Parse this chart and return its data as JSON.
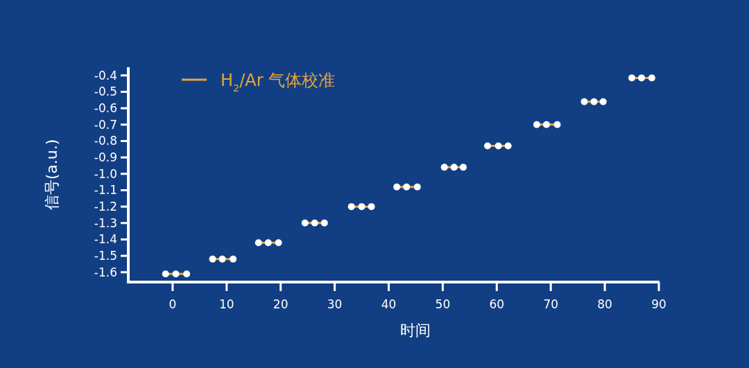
{
  "chart_data": {
    "type": "line",
    "xlabel": "时间",
    "ylabel": "信号(a.u.)",
    "series": [
      {
        "name": "H$_{2}$/Ar 气体校准",
        "color": "#e8a43c",
        "x": [
          -1.3,
          0.6,
          2.6,
          null,
          7.4,
          9.2,
          11.2,
          null,
          15.9,
          17.7,
          19.6,
          null,
          24.5,
          26.3,
          28.1,
          null,
          33.1,
          35,
          36.8,
          null,
          41.5,
          43.3,
          45.3,
          null,
          50.3,
          52.1,
          53.8,
          null,
          58.3,
          60.3,
          62.1,
          null,
          67.4,
          69.2,
          71.2,
          null,
          76.2,
          78,
          79.7,
          null,
          85,
          86.8,
          88.7
        ],
        "values": [
          -1.61,
          -1.61,
          -1.61,
          null,
          -1.52,
          -1.52,
          -1.52,
          null,
          -1.42,
          -1.42,
          -1.42,
          null,
          -1.3,
          -1.3,
          -1.3,
          null,
          -1.2,
          -1.2,
          -1.2,
          null,
          -1.08,
          -1.08,
          -1.08,
          null,
          -0.96,
          -0.96,
          -0.96,
          null,
          -0.83,
          -0.83,
          -0.83,
          null,
          -0.7,
          -0.7,
          -0.7,
          null,
          -0.56,
          -0.56,
          -0.56,
          null,
          -0.415,
          -0.415,
          -0.415
        ]
      }
    ],
    "xlim": [
      -8.2,
      90
    ],
    "xticks": [
      0,
      10,
      20,
      30,
      40,
      50,
      60,
      70,
      80,
      90
    ],
    "ylim": [
      -1.66,
      -0.35
    ],
    "yticks": [
      -0.4,
      -0.5,
      -0.6,
      -0.7,
      -0.8,
      -0.9,
      {
        "value": -1.0,
        "label": "-1.0"
      },
      -1.1,
      -1.2,
      -1.3,
      -1.4,
      -1.5,
      -1.6
    ],
    "marker": "circle",
    "legend": "top left",
    "grid": false
  }
}
